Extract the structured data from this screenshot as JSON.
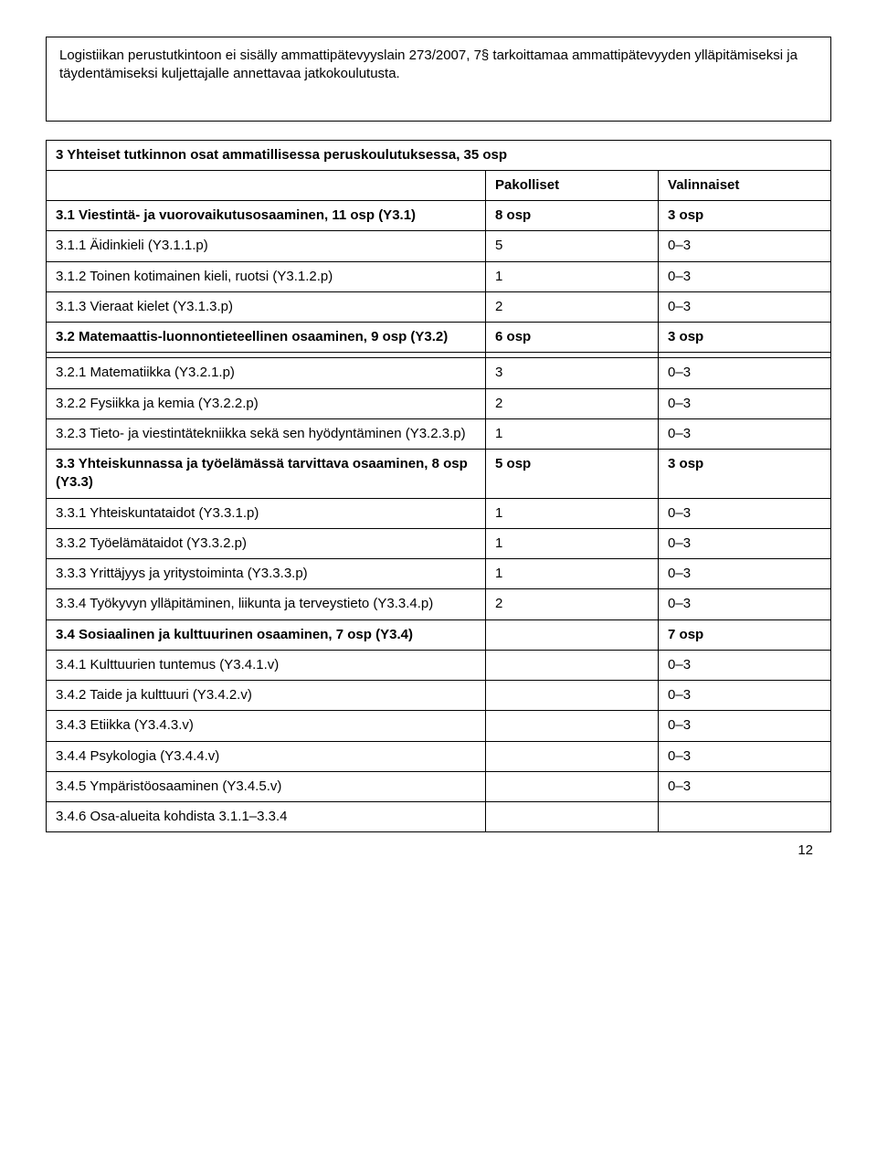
{
  "intro_box": "Logistiikan perustutkintoon ei sisälly ammattipätevyyslain 273/2007, 7§ tarkoittamaa ammattipätevyyden ylläpitämiseksi ja täydentämiseksi kuljettajalle annettavaa jatkokoulutusta.",
  "table_title": "3 Yhteiset tutkinnon osat ammatillisessa peruskoulutuksessa, 35 osp",
  "col_headers": {
    "c1": "",
    "c2": "Pakolliset",
    "c3": "Valinnaiset"
  },
  "rows": [
    {
      "label": "3.1 Viestintä- ja vuorovaikutusosaaminen, 11 osp (Y3.1)",
      "c2": "8 osp",
      "c3": "3 osp",
      "bold": true
    },
    {
      "label": "3.1.1 Äidinkieli (Y3.1.1.p)",
      "c2": "5",
      "c3": "0–3"
    },
    {
      "label": "3.1.2 Toinen kotimainen kieli, ruotsi (Y3.1.2.p)",
      "c2": "1",
      "c3": "0–3"
    },
    {
      "label": "3.1.3 Vieraat kielet (Y3.1.3.p)",
      "c2": "2",
      "c3": "0–3"
    },
    {
      "label": "3.2 Matemaattis-luonnontieteellinen osaaminen, 9 osp (Y3.2)",
      "c2": "6 osp",
      "c3": "3 osp",
      "bold": true
    },
    {
      "label": "3.2.1 Matematiikka (Y3.2.1.p)",
      "c2": "3",
      "c3": "0–3",
      "gap_before": true
    },
    {
      "label": "3.2.2 Fysiikka ja kemia (Y3.2.2.p)",
      "c2": "2",
      "c3": "0–3"
    },
    {
      "label": "3.2.3 Tieto- ja viestintätekniikka sekä sen hyödyntäminen (Y3.2.3.p)",
      "c2": "1",
      "c3": "0–3"
    },
    {
      "label": "3.3 Yhteiskunnassa ja työelämässä tarvittava osaaminen, 8 osp (Y3.3)",
      "c2": "5 osp",
      "c3": "3 osp",
      "bold": true
    },
    {
      "label": "3.3.1 Yhteiskuntataidot (Y3.3.1.p)",
      "c2": "1",
      "c3": "0–3"
    },
    {
      "label": "3.3.2 Työelämätaidot (Y3.3.2.p)",
      "c2": "1",
      "c3": "0–3"
    },
    {
      "label": "3.3.3 Yrittäjyys ja yritystoiminta (Y3.3.3.p)",
      "c2": "1",
      "c3": "0–3"
    },
    {
      "label": "3.3.4 Työkyvyn ylläpitäminen, liikunta ja terveystieto (Y3.3.4.p)",
      "c2": "2",
      "c3": "0–3"
    },
    {
      "label": "3.4 Sosiaalinen ja kulttuurinen osaaminen, 7 osp (Y3.4)",
      "c2": "",
      "c3": "7 osp",
      "bold": true
    },
    {
      "label": "3.4.1 Kulttuurien tuntemus (Y3.4.1.v)",
      "c2": "",
      "c3": "0–3"
    },
    {
      "label": "3.4.2 Taide ja kulttuuri (Y3.4.2.v)",
      "c2": "",
      "c3": "0–3"
    },
    {
      "label": "3.4.3 Etiikka (Y3.4.3.v)",
      "c2": "",
      "c3": "0–3"
    },
    {
      "label": "3.4.4 Psykologia (Y3.4.4.v)",
      "c2": "",
      "c3": "0–3"
    },
    {
      "label": "3.4.5 Ympäristöosaaminen (Y3.4.5.v)",
      "c2": "",
      "c3": "0–3"
    },
    {
      "label": "3.4.6 Osa-alueita kohdista 3.1.1–3.3.4",
      "c2": "",
      "c3": ""
    }
  ],
  "page_number": "12"
}
